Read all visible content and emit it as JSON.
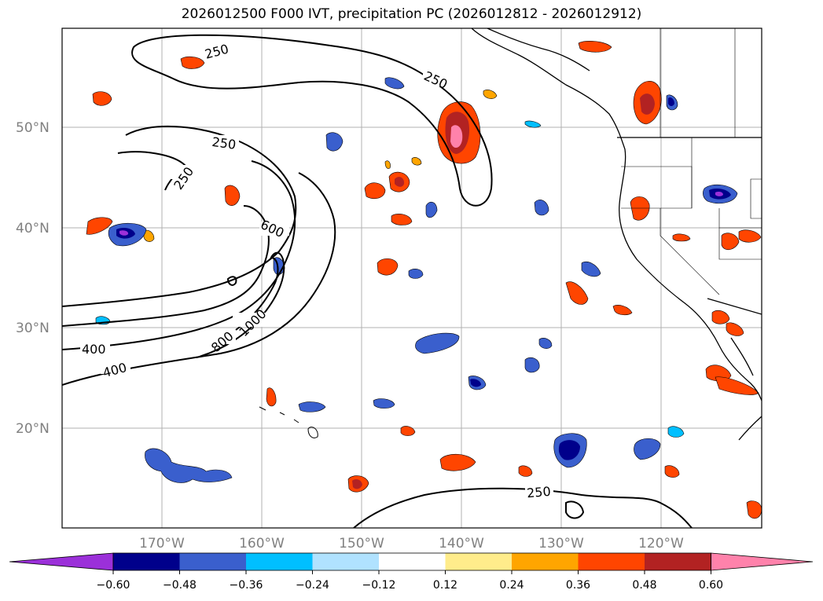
{
  "title": "2026012500 F000 IVT, precipitation PC (2026012812 - 2026012912)",
  "map": {
    "lat_labels": [
      "50°N",
      "40°N",
      "30°N",
      "20°N"
    ],
    "lon_labels": [
      "170°W",
      "160°W",
      "150°W",
      "140°W",
      "130°W",
      "120°W"
    ],
    "ivt_contour_labels": [
      "250",
      "250",
      "250",
      "250",
      "250",
      "600",
      "800",
      "1000",
      "400",
      "400"
    ]
  },
  "colorbar": {
    "ticks": [
      "−0.60",
      "−0.48",
      "−0.36",
      "−0.24",
      "−0.12",
      "0.12",
      "0.24",
      "0.36",
      "0.48",
      "0.60"
    ],
    "colors": [
      "#9b30d9",
      "#00008b",
      "#3a5fcd",
      "#00bfff",
      "#b0e2ff",
      "#ffffff",
      "#ffec8b",
      "#ffa500",
      "#ff4500",
      "#b22222",
      "#ff82ab"
    ]
  }
}
